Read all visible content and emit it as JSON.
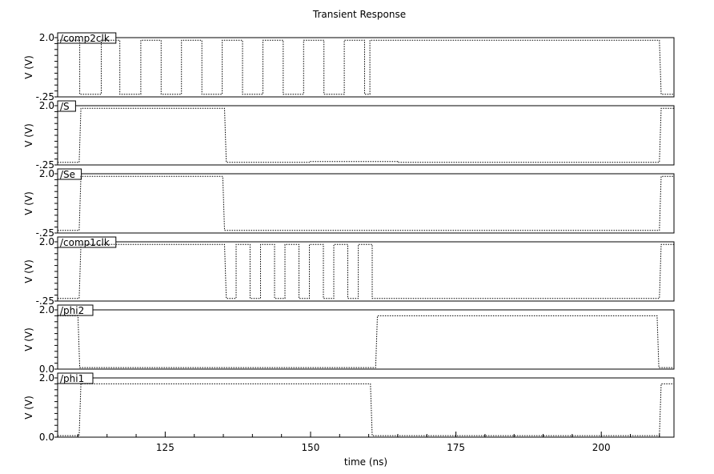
{
  "chart_data": {
    "type": "line",
    "title": "Transient Response",
    "xlabel": "time (ns)",
    "xlim": [
      106.5,
      212.5
    ],
    "x_ticks": [
      125,
      150,
      175,
      200
    ],
    "grid": false,
    "line_color": "#000000",
    "line_style": "dotted",
    "panels": [
      {
        "name": "/comp2clk",
        "ylabel": "V (V)",
        "ylim": [
          -0.25,
          2.0
        ],
        "y_ticks": [
          "2.0",
          "-.25"
        ],
        "points": [
          [
            106.5,
            1.9
          ],
          [
            110.3,
            1.9
          ],
          [
            110.3,
            -0.15
          ],
          [
            114,
            -0.15
          ],
          [
            114,
            1.9
          ],
          [
            117.2,
            1.9
          ],
          [
            117.2,
            -0.15
          ],
          [
            120.8,
            -0.15
          ],
          [
            120.8,
            1.9
          ],
          [
            124.3,
            1.9
          ],
          [
            124.3,
            -0.15
          ],
          [
            127.8,
            -0.15
          ],
          [
            127.8,
            1.9
          ],
          [
            131.3,
            1.9
          ],
          [
            131.3,
            -0.15
          ],
          [
            134.8,
            -0.15
          ],
          [
            134.8,
            1.9
          ],
          [
            138.3,
            1.9
          ],
          [
            138.3,
            -0.15
          ],
          [
            141.8,
            -0.15
          ],
          [
            141.8,
            1.9
          ],
          [
            145.3,
            1.9
          ],
          [
            145.3,
            -0.15
          ],
          [
            148.8,
            -0.15
          ],
          [
            148.8,
            1.9
          ],
          [
            152.3,
            1.9
          ],
          [
            152.3,
            -0.15
          ],
          [
            155.8,
            -0.15
          ],
          [
            155.8,
            1.9
          ],
          [
            159.3,
            1.9
          ],
          [
            159.3,
            -0.15
          ],
          [
            160.2,
            -0.15
          ],
          [
            160.2,
            1.9
          ],
          [
            210,
            1.9
          ],
          [
            210.3,
            -0.15
          ],
          [
            212.5,
            -0.15
          ]
        ]
      },
      {
        "name": "/S",
        "ylabel": "V (V)",
        "ylim": [
          -0.25,
          2.0
        ],
        "y_ticks": [
          "2.0",
          "-.25"
        ],
        "points": [
          [
            106.5,
            -0.15
          ],
          [
            110.2,
            -0.15
          ],
          [
            110.5,
            1.9
          ],
          [
            135.2,
            1.9
          ],
          [
            135.5,
            -0.15
          ],
          [
            150,
            -0.15
          ],
          [
            150,
            -0.12
          ],
          [
            165,
            -0.12
          ],
          [
            165,
            -0.15
          ],
          [
            210,
            -0.15
          ],
          [
            210.3,
            1.9
          ],
          [
            212.5,
            1.9
          ]
        ]
      },
      {
        "name": "/Se",
        "ylabel": "V (V)",
        "ylim": [
          -0.25,
          2.0
        ],
        "y_ticks": [
          "2.0",
          "-.25"
        ],
        "points": [
          [
            106.5,
            -0.15
          ],
          [
            110.2,
            -0.15
          ],
          [
            110.5,
            1.9
          ],
          [
            134.9,
            1.9
          ],
          [
            135.2,
            -0.15
          ],
          [
            210,
            -0.15
          ],
          [
            210.3,
            1.9
          ],
          [
            212.5,
            1.9
          ]
        ]
      },
      {
        "name": "/comp1clk",
        "ylabel": "V (V)",
        "ylim": [
          -0.25,
          2.0
        ],
        "y_ticks": [
          "2.0",
          "-.25"
        ],
        "points": [
          [
            106.5,
            -0.15
          ],
          [
            110.2,
            -0.15
          ],
          [
            110.5,
            1.9
          ],
          [
            135.2,
            1.9
          ],
          [
            135.5,
            -0.15
          ],
          [
            137.2,
            -0.15
          ],
          [
            137.2,
            1.9
          ],
          [
            139.6,
            1.9
          ],
          [
            139.6,
            -0.15
          ],
          [
            141.4,
            -0.15
          ],
          [
            141.4,
            1.9
          ],
          [
            143.8,
            1.9
          ],
          [
            143.8,
            -0.15
          ],
          [
            145.6,
            -0.15
          ],
          [
            145.6,
            1.9
          ],
          [
            148,
            1.9
          ],
          [
            148,
            -0.15
          ],
          [
            149.8,
            -0.15
          ],
          [
            149.8,
            1.9
          ],
          [
            152.2,
            1.9
          ],
          [
            152.2,
            -0.15
          ],
          [
            154,
            -0.15
          ],
          [
            154,
            1.9
          ],
          [
            156.4,
            1.9
          ],
          [
            156.4,
            -0.15
          ],
          [
            158.2,
            -0.15
          ],
          [
            158.2,
            1.9
          ],
          [
            160.6,
            1.9
          ],
          [
            160.6,
            -0.15
          ],
          [
            210,
            -0.15
          ],
          [
            210.3,
            1.9
          ],
          [
            212.5,
            1.9
          ]
        ]
      },
      {
        "name": "/phi2",
        "ylabel": "V (V)",
        "ylim": [
          0.0,
          2.0
        ],
        "y_ticks": [
          "2.0",
          "0.0"
        ],
        "points": [
          [
            106.5,
            1.8
          ],
          [
            110,
            1.8
          ],
          [
            110.3,
            0.05
          ],
          [
            161.2,
            0.05
          ],
          [
            161.5,
            1.8
          ],
          [
            209.6,
            1.8
          ],
          [
            209.9,
            0.05
          ],
          [
            212.5,
            0.05
          ]
        ]
      },
      {
        "name": "/phi1",
        "ylabel": "V (V)",
        "ylim": [
          0.0,
          2.0
        ],
        "y_ticks": [
          "2.0",
          "0.0"
        ],
        "points": [
          [
            106.5,
            0.05
          ],
          [
            110.2,
            0.05
          ],
          [
            110.5,
            1.8
          ],
          [
            160.3,
            1.8
          ],
          [
            160.6,
            0.05
          ],
          [
            210,
            0.05
          ],
          [
            210.3,
            1.8
          ],
          [
            212.5,
            1.8
          ]
        ]
      }
    ]
  }
}
